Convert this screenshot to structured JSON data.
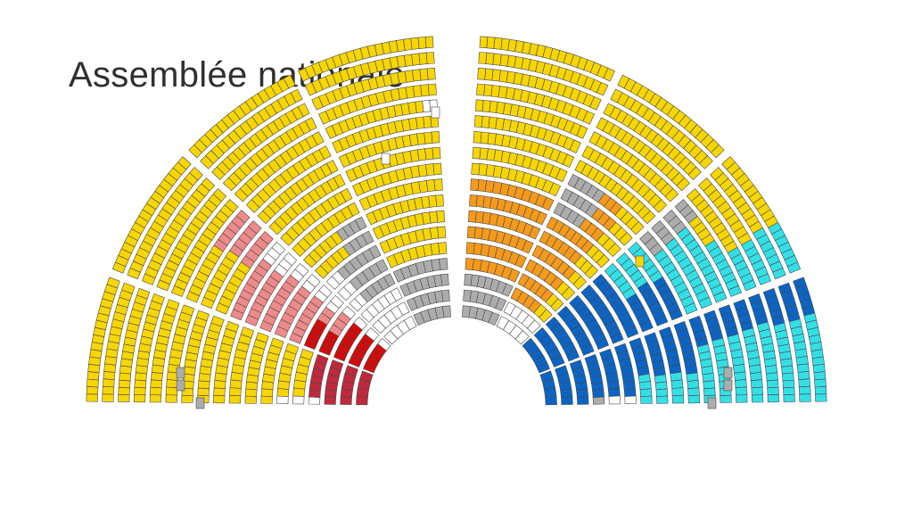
{
  "slide": {
    "title": "Assemblée nationale"
  },
  "hemicycle": {
    "groups": [
      {
        "key": "yellow",
        "color": "#f7d600"
      },
      {
        "key": "crimson",
        "color": "#c0293d"
      },
      {
        "key": "red",
        "color": "#d10a0a"
      },
      {
        "key": "pink",
        "color": "#ef8a8a"
      },
      {
        "key": "grey",
        "color": "#acacac"
      },
      {
        "key": "orange",
        "color": "#f59a1c"
      },
      {
        "key": "blue",
        "color": "#0b64c4"
      },
      {
        "key": "cyan",
        "color": "#33dfe6"
      },
      {
        "key": "empty",
        "color": "#ffffff"
      }
    ],
    "seat_border": "#4a4a4a"
  }
}
